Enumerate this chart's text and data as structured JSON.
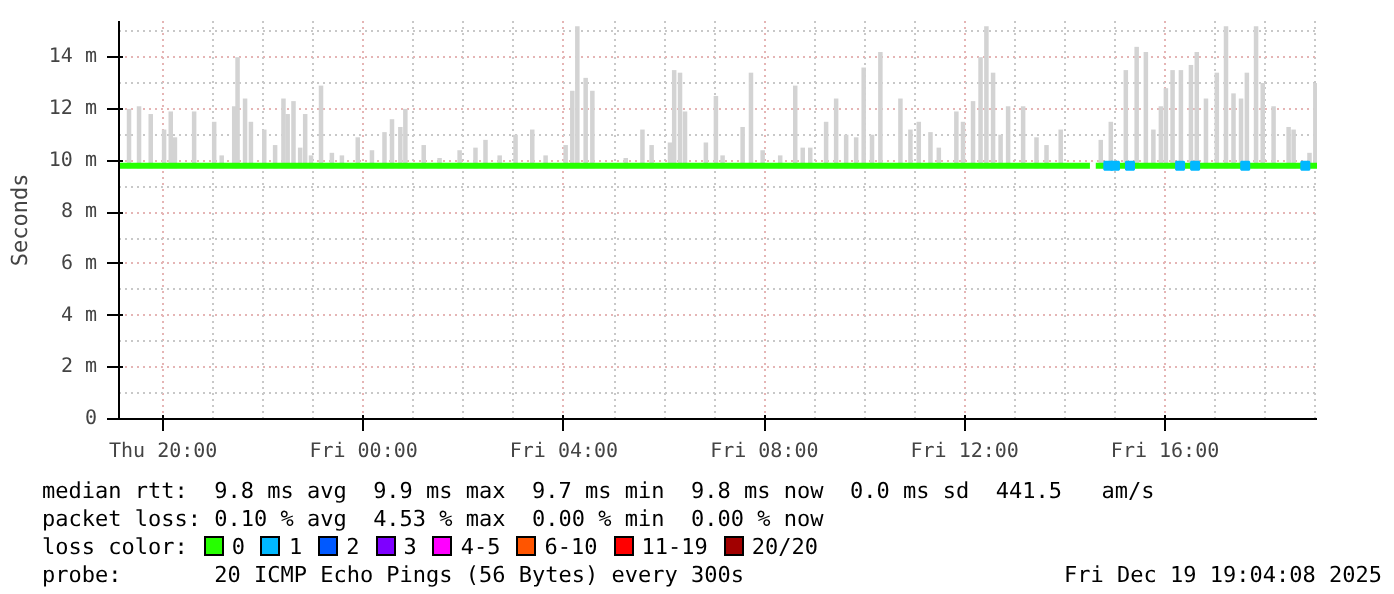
{
  "chart_data": {
    "type": "line",
    "ylabel": "Seconds",
    "xlim": [
      "2025-12-18T19:07",
      "2025-12-19T19:02"
    ],
    "xticks": [
      {
        "value": "2025-12-18T20:00",
        "label": "Thu 20:00"
      },
      {
        "value": "2025-12-19T00:00",
        "label": "Fri 00:00"
      },
      {
        "value": "2025-12-19T04:00",
        "label": "Fri 04:00"
      },
      {
        "value": "2025-12-19T08:00",
        "label": "Fri 08:00"
      },
      {
        "value": "2025-12-19T12:00",
        "label": "Fri 12:00"
      },
      {
        "value": "2025-12-19T16:00",
        "label": "Fri 16:00"
      }
    ],
    "ylim": [
      0,
      15.4
    ],
    "yticks": [
      0,
      {
        "value": 2,
        "label": "2 m"
      },
      {
        "value": 4,
        "label": "4 m"
      },
      {
        "value": 6,
        "label": "6 m"
      },
      {
        "value": 8,
        "label": "8 m"
      },
      {
        "value": 10,
        "label": "10 m"
      },
      {
        "value": 12,
        "label": "12 m"
      },
      {
        "value": 14,
        "label": "14 m"
      }
    ],
    "grid": true,
    "legend": "bottom",
    "legend_title": "loss color:",
    "series": [
      {
        "type": "bar",
        "color": "#d3d3d3",
        "x": [
          "2025-12-18T19:19",
          "2025-12-18T19:31",
          "2025-12-18T19:45",
          "2025-12-18T20:01",
          "2025-12-18T20:09",
          "2025-12-18T20:14",
          "2025-12-18T20:37",
          "2025-12-18T21:01",
          "2025-12-18T21:10",
          "2025-12-18T21:25",
          "2025-12-18T21:29",
          "2025-12-18T21:38",
          "2025-12-18T21:45",
          "2025-12-18T22:01",
          "2025-12-18T22:14",
          "2025-12-18T22:24",
          "2025-12-18T22:29",
          "2025-12-18T22:36",
          "2025-12-18T22:44",
          "2025-12-18T22:50",
          "2025-12-18T22:57",
          "2025-12-18T23:09",
          "2025-12-18T23:22",
          "2025-12-18T23:34",
          "2025-12-18T23:53",
          "2025-12-19T00:10",
          "2025-12-19T00:25",
          "2025-12-19T00:34",
          "2025-12-19T00:44",
          "2025-12-19T00:50",
          "2025-12-19T01:12",
          "2025-12-19T01:31",
          "2025-12-19T01:55",
          "2025-12-19T02:14",
          "2025-12-19T02:26",
          "2025-12-19T02:43",
          "2025-12-19T03:02",
          "2025-12-19T03:22",
          "2025-12-19T03:38",
          "2025-12-19T04:02",
          "2025-12-19T04:10",
          "2025-12-19T04:16",
          "2025-12-19T04:26",
          "2025-12-19T04:34",
          "2025-12-19T05:14",
          "2025-12-19T05:34",
          "2025-12-19T05:45",
          "2025-12-19T06:07",
          "2025-12-19T06:12",
          "2025-12-19T06:19",
          "2025-12-19T06:25",
          "2025-12-19T06:50",
          "2025-12-19T07:02",
          "2025-12-19T07:10",
          "2025-12-19T07:34",
          "2025-12-19T07:44",
          "2025-12-19T07:58",
          "2025-12-19T08:19",
          "2025-12-19T08:37",
          "2025-12-19T08:46",
          "2025-12-19T08:55",
          "2025-12-19T09:14",
          "2025-12-19T09:26",
          "2025-12-19T09:38",
          "2025-12-19T09:50",
          "2025-12-19T09:59",
          "2025-12-19T10:09",
          "2025-12-19T10:19",
          "2025-12-19T10:43",
          "2025-12-19T10:55",
          "2025-12-19T11:05",
          "2025-12-19T11:19",
          "2025-12-19T11:29",
          "2025-12-19T11:50",
          "2025-12-19T11:58",
          "2025-12-19T12:10",
          "2025-12-19T12:19",
          "2025-12-19T12:26",
          "2025-12-19T12:34",
          "2025-12-19T12:43",
          "2025-12-19T12:52",
          "2025-12-19T13:10",
          "2025-12-19T13:26",
          "2025-12-19T13:38",
          "2025-12-19T13:55",
          "2025-12-19T14:43",
          "2025-12-19T14:55",
          "2025-12-19T15:13",
          "2025-12-19T15:26",
          "2025-12-19T15:37",
          "2025-12-19T15:46",
          "2025-12-19T15:55",
          "2025-12-19T16:01",
          "2025-12-19T16:09",
          "2025-12-19T16:19",
          "2025-12-19T16:31",
          "2025-12-19T16:38",
          "2025-12-19T16:49",
          "2025-12-19T17:02",
          "2025-12-19T17:13",
          "2025-12-19T17:22",
          "2025-12-19T17:31",
          "2025-12-19T17:38",
          "2025-12-19T17:49",
          "2025-12-19T17:57",
          "2025-12-19T18:10",
          "2025-12-19T18:28",
          "2025-12-19T18:34",
          "2025-12-19T18:53",
          "2025-12-19T19:00"
        ],
        "base": [
          9.7,
          9.7,
          9.7,
          9.7,
          9.7,
          9.7,
          9.7,
          9.7,
          9.7,
          9.7,
          9.7,
          9.7,
          9.7,
          9.7,
          9.7,
          9.7,
          9.7,
          9.7,
          9.7,
          9.7,
          9.7,
          9.7,
          9.7,
          9.7,
          9.7,
          9.7,
          9.7,
          9.7,
          9.7,
          9.7,
          9.7,
          9.7,
          9.7,
          9.7,
          9.7,
          9.7,
          9.7,
          9.7,
          9.7,
          9.7,
          9.7,
          9.7,
          9.7,
          9.7,
          9.7,
          9.7,
          9.7,
          9.7,
          9.7,
          9.7,
          9.7,
          9.7,
          9.7,
          9.7,
          9.7,
          9.7,
          9.7,
          9.7,
          9.7,
          9.7,
          9.7,
          9.7,
          9.7,
          9.7,
          9.7,
          9.7,
          9.7,
          9.7,
          9.7,
          9.7,
          9.7,
          9.7,
          9.7,
          9.7,
          9.7,
          9.7,
          9.7,
          9.7,
          9.7,
          9.7,
          9.7,
          9.7,
          9.7,
          9.7,
          9.7,
          9.7,
          9.7,
          9.7,
          9.7,
          9.7,
          9.7,
          9.7,
          9.7,
          9.7,
          9.7,
          9.7,
          9.7,
          9.7,
          9.7,
          9.7,
          9.7,
          9.7,
          9.7,
          9.7,
          9.7,
          9.7,
          9.7,
          9.7,
          9.7,
          9.7
        ],
        "values": [
          2.3,
          2.4,
          2.1,
          1.5,
          2.2,
          1.2,
          2.2,
          1.8,
          0.5,
          2.4,
          4.3,
          2.7,
          1.8,
          1.5,
          0.9,
          2.7,
          2.1,
          2.6,
          0.8,
          2.1,
          0.5,
          3.2,
          0.6,
          0.5,
          1.2,
          0.7,
          1.4,
          1.9,
          1.6,
          2.3,
          0.9,
          0.4,
          0.7,
          0.8,
          1.1,
          0.5,
          1.3,
          1.5,
          0.5,
          0.9,
          3.0,
          5.5,
          3.5,
          3.0,
          0.4,
          1.5,
          0.9,
          1.0,
          3.8,
          3.7,
          2.2,
          1.0,
          2.8,
          0.5,
          1.6,
          3.7,
          0.7,
          0.5,
          3.2,
          0.8,
          0.8,
          1.8,
          2.7,
          1.3,
          1.2,
          3.9,
          1.3,
          4.5,
          2.7,
          1.5,
          1.8,
          1.4,
          0.8,
          2.2,
          1.8,
          2.6,
          4.3,
          5.5,
          3.7,
          1.3,
          2.4,
          2.4,
          1.2,
          0.9,
          1.5,
          1.1,
          1.8,
          3.8,
          4.7,
          4.5,
          1.5,
          2.4,
          3.1,
          3.8,
          3.8,
          4.0,
          4.5,
          2.7,
          3.7,
          5.5,
          2.9,
          2.7,
          3.7,
          5.5,
          3.3,
          2.4,
          1.6,
          1.5,
          0.6,
          3.3
        ]
      },
      {
        "name": "0",
        "color": "#26ff00",
        "x": [
          "2025-12-18T19:07",
          "2025-12-19T01:00",
          "2025-12-19T06:00",
          "2025-12-19T11:00",
          "2025-12-19T14:30",
          "2025-12-19T14:33",
          "2025-12-19T14:37",
          "2025-12-19T17:00",
          "2025-12-19T19:02"
        ],
        "values": [
          9.8,
          9.8,
          9.8,
          9.8,
          9.8,
          null,
          9.8,
          9.8,
          9.8
        ]
      },
      {
        "name": "1",
        "type": "scatter",
        "color": "#00b8ff",
        "x": [
          "2025-12-19T14:52",
          "2025-12-19T15:00",
          "2025-12-19T15:18",
          "2025-12-19T16:18",
          "2025-12-19T16:36",
          "2025-12-19T17:36",
          "2025-12-19T18:48"
        ],
        "values": [
          9.8,
          9.8,
          9.8,
          9.8,
          9.8,
          9.8,
          9.8
        ]
      },
      {
        "name": "2",
        "type": "scatter",
        "color": "#0059ff"
      },
      {
        "name": "3",
        "type": "scatter",
        "color": "#7e00ff"
      },
      {
        "name": "4-5",
        "type": "scatter",
        "color": "#ff00ff"
      },
      {
        "name": "6-10",
        "type": "scatter",
        "color": "#ff5500"
      },
      {
        "name": "11-19",
        "type": "scatter",
        "color": "#ff0000"
      },
      {
        "name": "20/20",
        "type": "scatter",
        "color": "#a10000"
      }
    ],
    "annotations": [
      "median rtt:  9.8 ms avg  9.9 ms max  9.7 ms min  9.8 ms now  0.0 ms sd  441.5   am/s",
      "packet loss: 0.10 % avg  4.53 % max  0.00 % min  0.00 % now",
      "probe:       20 ICMP Echo Pings (56 Bytes) every 300s",
      "Fri Dec 19 19:04:08 2025"
    ]
  }
}
